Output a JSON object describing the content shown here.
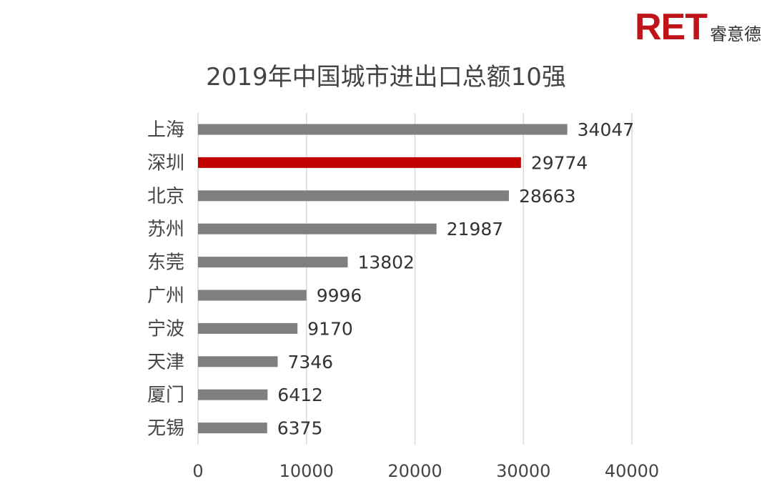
{
  "brand": {
    "mark": "RET",
    "name": "睿意德",
    "accent": "#c0141b"
  },
  "chart_data": {
    "type": "bar",
    "orientation": "horizontal",
    "title": "2019年中国城市进出口总额10强",
    "categories": [
      "上海",
      "深圳",
      "北京",
      "苏州",
      "东莞",
      "广州",
      "宁波",
      "天津",
      "厦门",
      "无锡"
    ],
    "values": [
      34047,
      29774,
      28663,
      21987,
      13802,
      9996,
      9170,
      7346,
      6412,
      6375
    ],
    "xlim": [
      0,
      40000
    ],
    "xticks": [
      0,
      10000,
      20000,
      30000,
      40000
    ],
    "xtick_labels": [
      "0",
      "10000",
      "20000",
      "30000",
      "40000"
    ],
    "grid": "vertical",
    "bar_color": "#7f7f7f",
    "highlight_category": "深圳",
    "highlight_color": "#c00000",
    "xlabel": "",
    "ylabel": ""
  }
}
